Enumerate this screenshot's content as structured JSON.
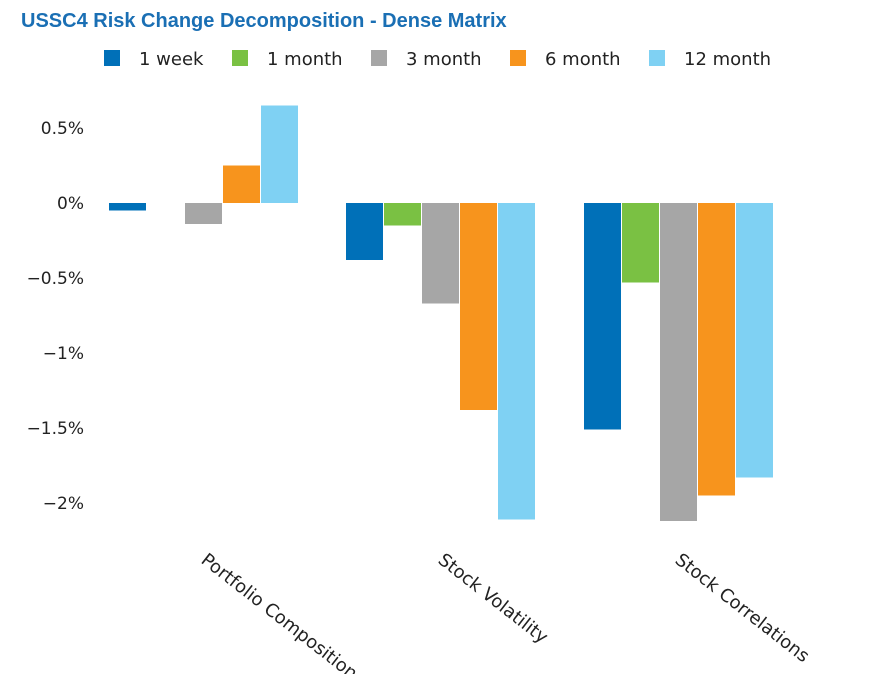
{
  "chart_data": {
    "type": "bar",
    "title": "USSC4 Risk Change Decomposition - Dense Matrix",
    "categories": [
      "Portfolio Composition",
      "Stock Volatility",
      "Stock Correlations"
    ],
    "series": [
      {
        "name": "1 week",
        "color": "#0070b8",
        "values": [
          -0.05,
          -0.38,
          -1.51
        ]
      },
      {
        "name": "1 month",
        "color": "#7ac143",
        "values": [
          0.0,
          -0.15,
          -0.53
        ]
      },
      {
        "name": "3 month",
        "color": "#a6a6a6",
        "values": [
          -0.14,
          -0.67,
          -2.12
        ]
      },
      {
        "name": "6 month",
        "color": "#f7941d",
        "values": [
          0.25,
          -1.38,
          -1.95
        ]
      },
      {
        "name": "12 month",
        "color": "#7fd1f3",
        "values": [
          0.65,
          -2.11,
          -1.83
        ]
      }
    ],
    "ylim": [
      -2.2,
      0.7
    ],
    "yticks": [
      {
        "value": 0.5,
        "label": "0.5%"
      },
      {
        "value": 0,
        "label": "0%"
      },
      {
        "value": -0.5,
        "label": "−0.5%"
      },
      {
        "value": -1,
        "label": "−1%"
      },
      {
        "value": -1.5,
        "label": "−1.5%"
      },
      {
        "value": -2,
        "label": "−2%"
      }
    ],
    "grid": false,
    "legend_position": "top"
  }
}
